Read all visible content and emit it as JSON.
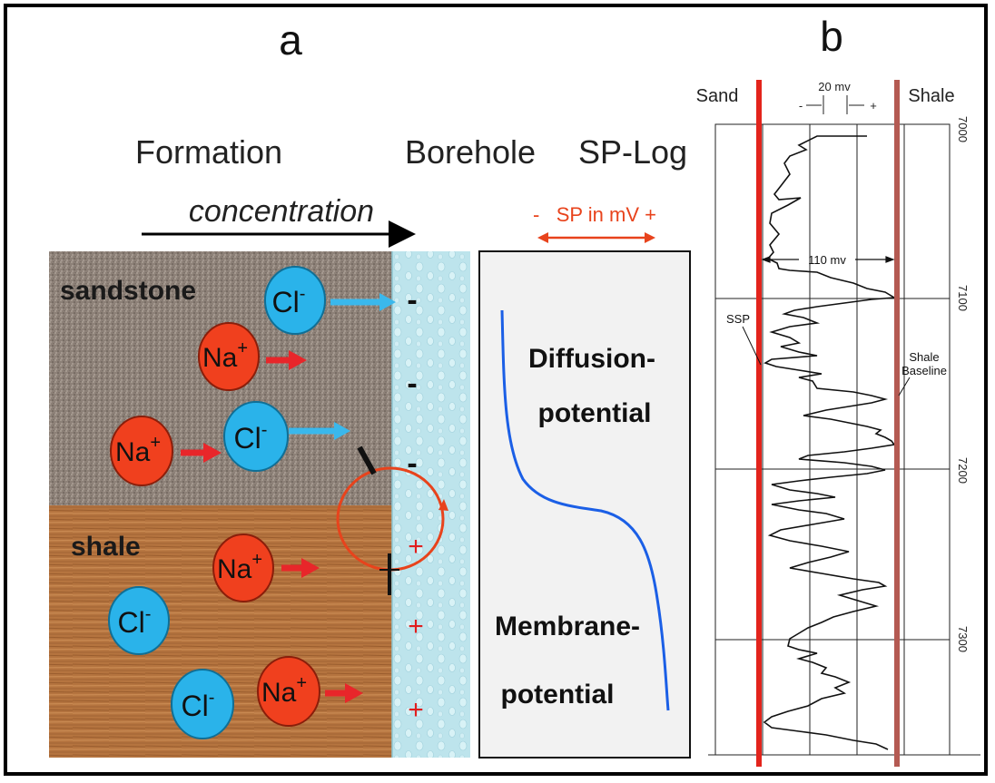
{
  "panel_a": {
    "label": "a",
    "headers": {
      "formation": "Formation",
      "borehole": "Borehole",
      "sp_log": "SP-Log"
    },
    "concentration_label": "concentration",
    "sp_scale_label": "-   SP in mV +",
    "layers": {
      "sandstone": "sandstone",
      "shale": "shale"
    },
    "ions": {
      "cl": "Cl",
      "cl_sign": "-",
      "na": "Na",
      "na_sign": "+"
    },
    "borehole_charges": [
      "-",
      "-",
      "-",
      "+",
      "+",
      "+"
    ],
    "sp_curve_labels": {
      "diffusion_1": "Diffusion-",
      "diffusion_2": "potential",
      "membrane_1": "Membrane-",
      "membrane_2": "potential"
    },
    "colors": {
      "na": "#f0401e",
      "cl": "#2ab3ea",
      "arrow_red": "#e8262a",
      "arrow_blue": "#3ab8ec",
      "sp_curve": "#1b5fe6",
      "circuit": "#e8431c",
      "sand": "#8b7f74",
      "shale": "#b06f3e",
      "borehole": "#bfe6ee"
    }
  },
  "panel_b": {
    "label": "b",
    "sand_label": "Sand",
    "shale_label": "Shale",
    "scale_label": "20 mv",
    "scale_minus": "-",
    "scale_plus": "+",
    "ssp_amplitude_label": "110 mv",
    "ssp_label": "SSP",
    "shale_baseline_1": "Shale",
    "shale_baseline_2": "Baseline",
    "depth_labels": [
      "7000",
      "7100",
      "7200",
      "7300"
    ],
    "colors": {
      "sand_line": "#e3241c",
      "shale_line": "#b45a52"
    }
  }
}
